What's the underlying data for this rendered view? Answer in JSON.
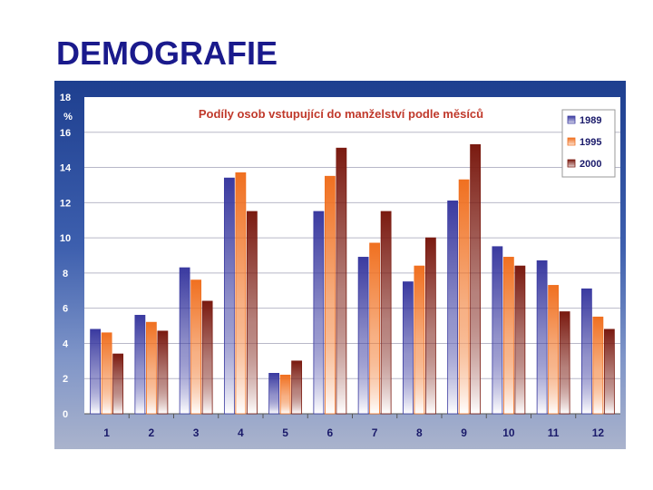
{
  "slide": {
    "title": "DEMOGRAFIE"
  },
  "chart_data": {
    "type": "bar",
    "title": "Podíly osob vstupující do manželství podle měsíců",
    "ylabel": "%",
    "xlabel": "",
    "ylim": [
      0,
      18
    ],
    "yticks": [
      0,
      2,
      4,
      6,
      8,
      10,
      12,
      14,
      16,
      18
    ],
    "categories": [
      "1",
      "2",
      "3",
      "4",
      "5",
      "6",
      "7",
      "8",
      "9",
      "10",
      "11",
      "12"
    ],
    "series": [
      {
        "name": "1989",
        "color": "#3a3aa0",
        "values": [
          4.8,
          5.6,
          8.3,
          13.4,
          2.3,
          11.5,
          8.9,
          7.5,
          12.1,
          9.5,
          8.7,
          7.1
        ]
      },
      {
        "name": "1995",
        "color": "#f07020",
        "values": [
          4.6,
          5.2,
          7.6,
          13.7,
          2.2,
          13.5,
          9.7,
          8.4,
          13.3,
          8.9,
          7.3,
          5.5
        ]
      },
      {
        "name": "2000",
        "color": "#7a1a10",
        "values": [
          3.4,
          4.7,
          6.4,
          11.5,
          3.0,
          15.1,
          11.5,
          10.0,
          15.3,
          8.4,
          5.8,
          4.8
        ]
      }
    ],
    "grid": true,
    "legend": "top-right"
  }
}
